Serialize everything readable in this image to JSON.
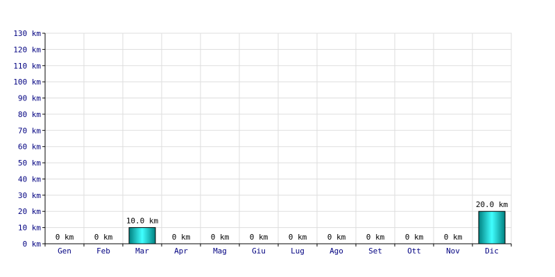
{
  "chart_data": {
    "type": "bar",
    "title": "",
    "xlabel": "",
    "ylabel": "",
    "unit": "km",
    "categories": [
      "Gen",
      "Feb",
      "Mar",
      "Apr",
      "Mag",
      "Giu",
      "Lug",
      "Ago",
      "Set",
      "Ott",
      "Nov",
      "Dic"
    ],
    "values": [
      0,
      0,
      10.0,
      0,
      0,
      0,
      0,
      0,
      0,
      0,
      0,
      20.0
    ],
    "data_labels": [
      "0 km",
      "0 km",
      "10.0 km",
      "0 km",
      "0 km",
      "0 km",
      "0 km",
      "0 km",
      "0 km",
      "0 km",
      "0 km",
      "20.0 km"
    ],
    "ylim": [
      0,
      130
    ],
    "yticks": [
      0,
      10,
      20,
      30,
      40,
      50,
      60,
      70,
      80,
      90,
      100,
      110,
      120,
      130
    ],
    "ytick_labels": [
      "0 km",
      "10 km",
      "20 km",
      "30 km",
      "40 km",
      "50 km",
      "60 km",
      "70 km",
      "80 km",
      "90 km",
      "100 km",
      "110 km",
      "120 km",
      "130 km"
    ],
    "grid": true,
    "bar_color": "#00c8c8",
    "bar_gradient_dark": "#008080",
    "bar_gradient_light": "#40ffff",
    "label_color": "#000080",
    "grid_color": "#dddddd"
  }
}
